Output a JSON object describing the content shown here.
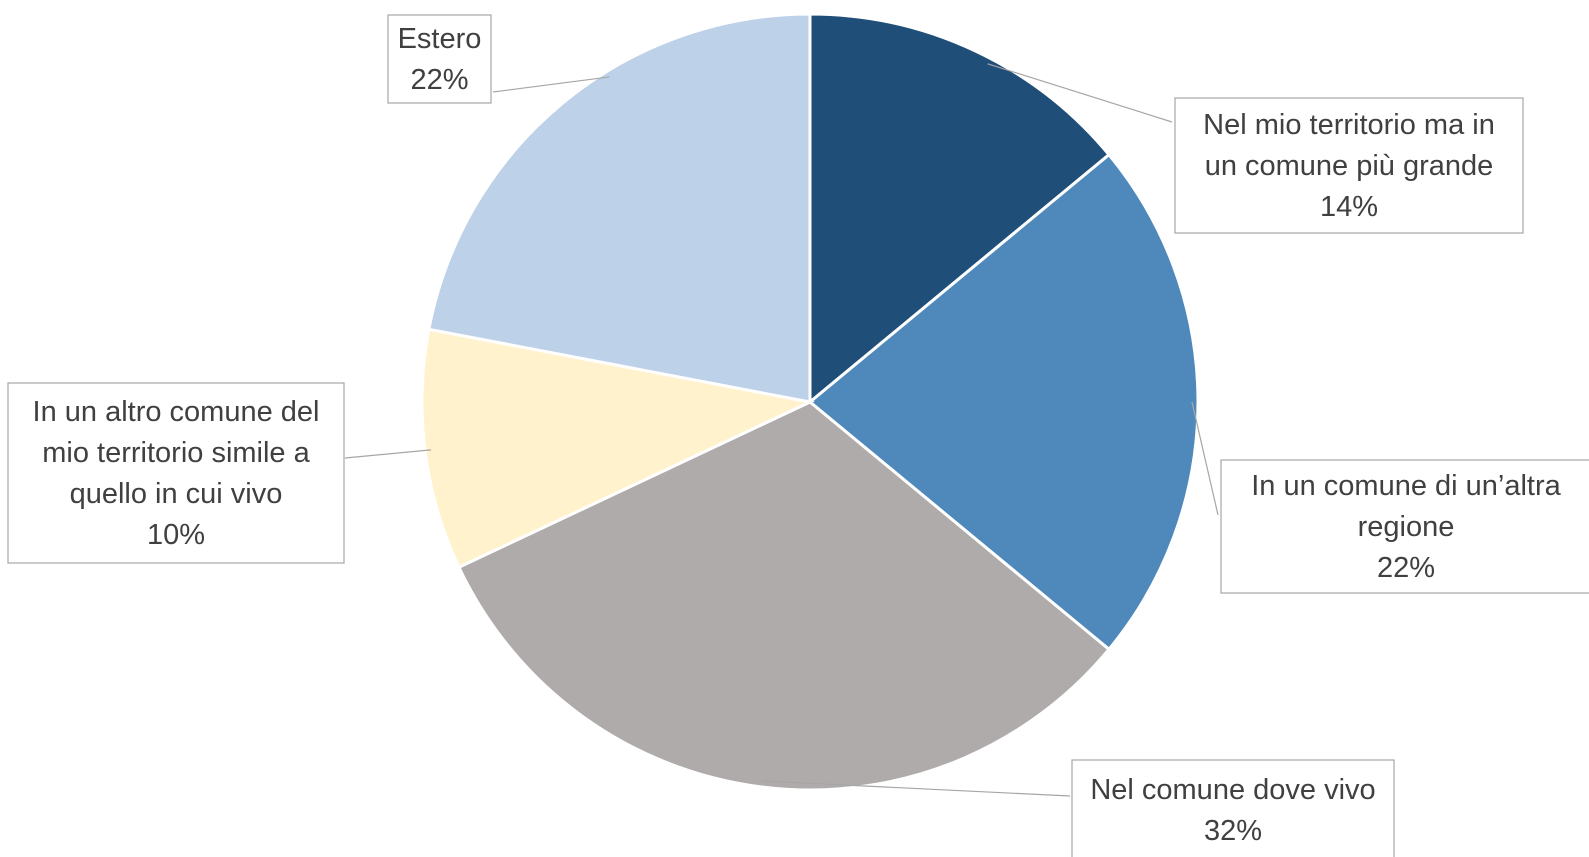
{
  "chart_data": {
    "type": "pie",
    "title": "",
    "slices": [
      {
        "label_lines": [
          "Nel mio territorio ma in",
          "un comune più grande"
        ],
        "value": 14,
        "value_label": "14%",
        "color": "#1F4E79"
      },
      {
        "label_lines": [
          "In un comune di un’altra",
          "regione"
        ],
        "value": 22,
        "value_label": "22%",
        "color": "#4F89BC"
      },
      {
        "label_lines": [
          "Nel comune dove vivo"
        ],
        "value": 32,
        "value_label": "32%",
        "color": "#AFABAB"
      },
      {
        "label_lines": [
          "In un altro comune del",
          "mio territorio simile a",
          "quello in cui vivo"
        ],
        "value": 10,
        "value_label": "10%",
        "color": "#FFF2CC"
      },
      {
        "label_lines": [
          "Estero"
        ],
        "value": 22,
        "value_label": "22%",
        "color": "#BDD1E9"
      }
    ],
    "start_angle_deg": 0,
    "direction": "clockwise",
    "legend": "none",
    "data_labels": "callouts"
  }
}
